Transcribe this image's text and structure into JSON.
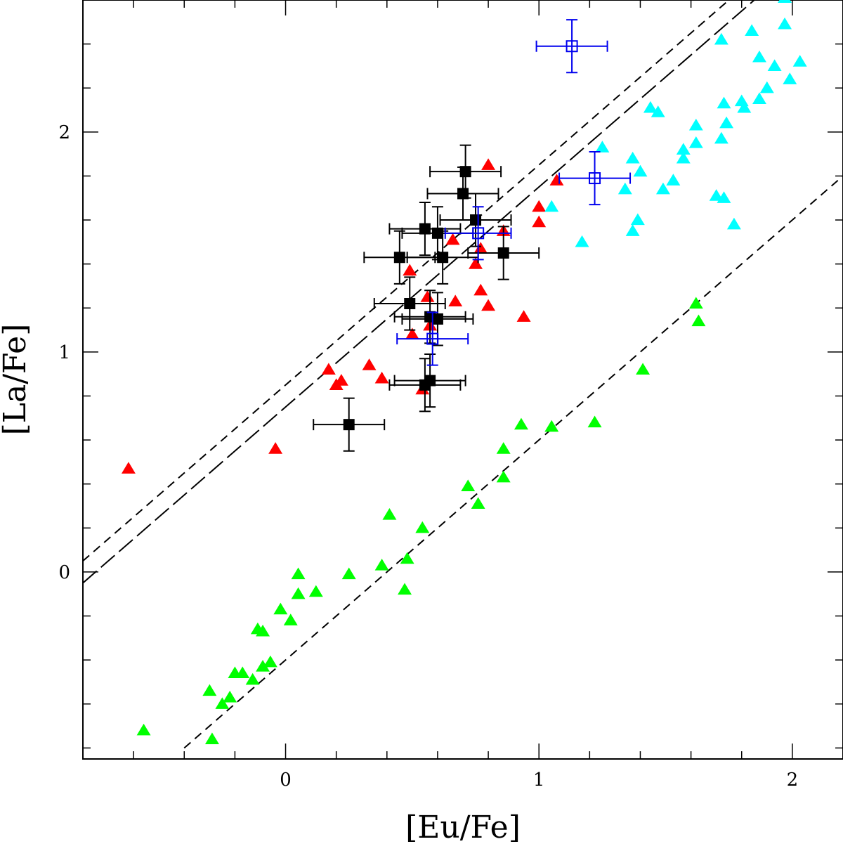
{
  "chart_data": {
    "type": "scatter",
    "xlabel": "[Eu/Fe]",
    "ylabel": "[La/Fe]",
    "xlim": [
      -0.8,
      2.2
    ],
    "ylim": [
      -0.85,
      2.6
    ],
    "xticks_major": [
      0,
      1,
      2
    ],
    "xtick_labels": [
      "0",
      "1",
      "2"
    ],
    "yticks_major": [
      0,
      1,
      2
    ],
    "ytick_labels": [
      "0",
      "1",
      "2"
    ],
    "minor_tick_step": 0.2,
    "grid": false,
    "colors": {
      "red": "#ff0000",
      "cyan": "#00ffff",
      "green": "#00ff00",
      "black": "#000000",
      "blue": "#0000ee"
    },
    "lines": [
      {
        "name": "short-dashed upper",
        "style": "short-dash",
        "x": [
          -0.8,
          2.2
        ],
        "y": [
          0.05,
          3.05
        ]
      },
      {
        "name": "long-dashed",
        "style": "long-dash",
        "x": [
          -0.8,
          2.2
        ],
        "y": [
          -0.05,
          2.95
        ]
      },
      {
        "name": "short-dashed lower",
        "style": "short-dash",
        "x": [
          -0.4,
          2.2
        ],
        "y": [
          -0.8,
          1.8
        ]
      }
    ],
    "series": [
      {
        "name": "red-triangles",
        "marker": "triangle",
        "color": "red",
        "points": [
          [
            -0.62,
            0.47
          ],
          [
            -0.04,
            0.56
          ],
          [
            0.17,
            0.92
          ],
          [
            0.2,
            0.85
          ],
          [
            0.22,
            0.87
          ],
          [
            0.33,
            0.94
          ],
          [
            0.38,
            0.88
          ],
          [
            0.49,
            1.37
          ],
          [
            0.5,
            1.08
          ],
          [
            0.54,
            0.83
          ],
          [
            0.56,
            1.25
          ],
          [
            0.57,
            1.12
          ],
          [
            0.66,
            1.51
          ],
          [
            0.67,
            1.23
          ],
          [
            0.75,
            1.4
          ],
          [
            0.77,
            1.47
          ],
          [
            0.77,
            1.28
          ],
          [
            0.8,
            1.21
          ],
          [
            0.8,
            1.85
          ],
          [
            0.86,
            1.55
          ],
          [
            0.94,
            1.16
          ],
          [
            1.0,
            1.66
          ],
          [
            1.0,
            1.59
          ],
          [
            1.07,
            1.78
          ]
        ]
      },
      {
        "name": "cyan-triangles",
        "marker": "triangle",
        "color": "cyan",
        "points": [
          [
            1.05,
            1.66
          ],
          [
            1.17,
            1.5
          ],
          [
            1.25,
            1.93
          ],
          [
            1.34,
            1.74
          ],
          [
            1.37,
            1.88
          ],
          [
            1.37,
            1.55
          ],
          [
            1.39,
            1.6
          ],
          [
            1.4,
            1.82
          ],
          [
            1.44,
            2.11
          ],
          [
            1.47,
            2.09
          ],
          [
            1.49,
            1.74
          ],
          [
            1.53,
            1.78
          ],
          [
            1.57,
            1.92
          ],
          [
            1.57,
            1.88
          ],
          [
            1.62,
            2.03
          ],
          [
            1.62,
            1.95
          ],
          [
            1.7,
            1.71
          ],
          [
            1.72,
            2.42
          ],
          [
            1.72,
            1.97
          ],
          [
            1.73,
            2.13
          ],
          [
            1.73,
            1.7
          ],
          [
            1.74,
            2.04
          ],
          [
            1.77,
            1.58
          ],
          [
            1.8,
            2.14
          ],
          [
            1.81,
            2.11
          ],
          [
            1.84,
            2.46
          ],
          [
            1.87,
            2.34
          ],
          [
            1.87,
            2.15
          ],
          [
            1.9,
            2.2
          ],
          [
            1.93,
            2.3
          ],
          [
            1.97,
            2.49
          ],
          [
            1.97,
            2.61
          ],
          [
            1.99,
            2.24
          ],
          [
            2.03,
            2.32
          ]
        ]
      },
      {
        "name": "green-triangles",
        "marker": "triangle",
        "color": "green",
        "points": [
          [
            -0.56,
            -0.72
          ],
          [
            -0.3,
            -0.54
          ],
          [
            -0.29,
            -0.76
          ],
          [
            -0.25,
            -0.6
          ],
          [
            -0.22,
            -0.57
          ],
          [
            -0.2,
            -0.46
          ],
          [
            -0.17,
            -0.46
          ],
          [
            -0.13,
            -0.49
          ],
          [
            -0.11,
            -0.26
          ],
          [
            -0.09,
            -0.27
          ],
          [
            -0.09,
            -0.43
          ],
          [
            -0.06,
            -0.41
          ],
          [
            -0.02,
            -0.17
          ],
          [
            0.02,
            -0.22
          ],
          [
            0.05,
            -0.01
          ],
          [
            0.05,
            -0.1
          ],
          [
            0.12,
            -0.09
          ],
          [
            0.25,
            -0.01
          ],
          [
            0.38,
            0.03
          ],
          [
            0.41,
            0.26
          ],
          [
            0.47,
            -0.08
          ],
          [
            0.48,
            0.06
          ],
          [
            0.54,
            0.2
          ],
          [
            0.72,
            0.39
          ],
          [
            0.76,
            0.31
          ],
          [
            0.86,
            0.56
          ],
          [
            0.86,
            0.43
          ],
          [
            0.93,
            0.67
          ],
          [
            1.05,
            0.66
          ],
          [
            1.22,
            0.68
          ],
          [
            1.41,
            0.92
          ],
          [
            1.62,
            1.22
          ],
          [
            1.63,
            1.14
          ]
        ]
      },
      {
        "name": "black-squares-with-errorbars",
        "marker": "filled-square",
        "color": "black",
        "points": [
          {
            "x": 0.25,
            "y": 0.67,
            "xerr": 0.14,
            "yerr": 0.12
          },
          {
            "x": 0.45,
            "y": 1.43,
            "xerr": 0.14,
            "yerr": 0.12
          },
          {
            "x": 0.49,
            "y": 1.22,
            "xerr": 0.14,
            "yerr": 0.12
          },
          {
            "x": 0.55,
            "y": 1.56,
            "xerr": 0.14,
            "yerr": 0.12
          },
          {
            "x": 0.55,
            "y": 0.85,
            "xerr": 0.14,
            "yerr": 0.12
          },
          {
            "x": 0.57,
            "y": 1.16,
            "xerr": 0.14,
            "yerr": 0.12
          },
          {
            "x": 0.57,
            "y": 0.87,
            "xerr": 0.14,
            "yerr": 0.12
          },
          {
            "x": 0.6,
            "y": 1.54,
            "xerr": 0.14,
            "yerr": 0.12
          },
          {
            "x": 0.6,
            "y": 1.15,
            "xerr": 0.14,
            "yerr": 0.12
          },
          {
            "x": 0.62,
            "y": 1.43,
            "xerr": 0.14,
            "yerr": 0.12
          },
          {
            "x": 0.7,
            "y": 1.72,
            "xerr": 0.14,
            "yerr": 0.12
          },
          {
            "x": 0.71,
            "y": 1.82,
            "xerr": 0.14,
            "yerr": 0.12
          },
          {
            "x": 0.75,
            "y": 1.6,
            "xerr": 0.14,
            "yerr": 0.12
          },
          {
            "x": 0.86,
            "y": 1.45,
            "xerr": 0.14,
            "yerr": 0.12
          }
        ]
      },
      {
        "name": "blue-open-squares-with-errorbars",
        "marker": "open-square",
        "color": "blue",
        "points": [
          {
            "x": 0.58,
            "y": 1.06,
            "xerr": 0.14,
            "yerr": 0.12
          },
          {
            "x": 0.76,
            "y": 1.54,
            "xerr": 0.13,
            "yerr": 0.12
          },
          {
            "x": 1.13,
            "y": 2.39,
            "xerr": 0.14,
            "yerr": 0.12
          },
          {
            "x": 1.22,
            "y": 1.79,
            "xerr": 0.14,
            "yerr": 0.12
          }
        ]
      }
    ]
  }
}
